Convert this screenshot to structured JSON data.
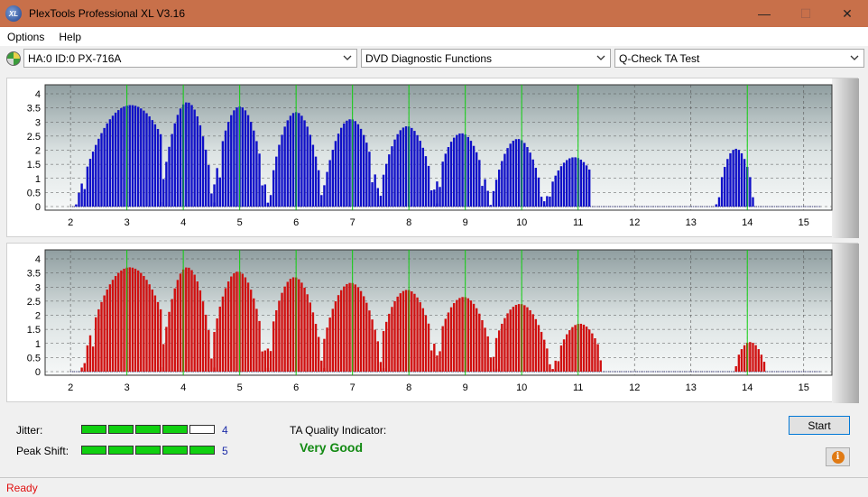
{
  "window": {
    "title": "PlexTools Professional XL V3.16",
    "icon_label": "XL",
    "minimize_glyph": "—",
    "maximize_glyph": "☐",
    "close_glyph": "✕"
  },
  "menu": {
    "items": [
      "Options",
      "Help"
    ]
  },
  "toolbar": {
    "drive": "HA:0 ID:0  PX-716A",
    "function": "DVD Diagnostic Functions",
    "test": "Q-Check TA Test"
  },
  "colors": {
    "jitter_bars": "#1010c8",
    "peak_bars": "#d01010",
    "marker_lines": "#10d010",
    "meter_on": "#10d010",
    "quality_text": "#138a13",
    "status_text": "#e01010"
  },
  "chart_data": [
    {
      "type": "bar",
      "xlim": [
        1.55,
        15.5
      ],
      "ylim": [
        0,
        4
      ],
      "x_ticks": [
        2,
        3,
        4,
        5,
        6,
        7,
        8,
        9,
        10,
        11,
        12,
        13,
        14,
        15
      ],
      "y_ticks": [
        0,
        0.5,
        1,
        1.5,
        2,
        2.5,
        3,
        3.5,
        4
      ],
      "y_tick_labels": [
        "0",
        "0.5",
        "1",
        "1.5",
        "2",
        "2.5",
        "3",
        "3.5",
        "4"
      ],
      "markers": [
        3,
        4,
        5,
        6,
        7,
        8,
        9,
        10,
        11,
        14
      ],
      "grid": true,
      "peaks": [
        {
          "center": 3.07,
          "height": 3.6,
          "from": 2.1,
          "to": 3.6,
          "shape": "rise"
        },
        {
          "center": 4.07,
          "height": 3.7,
          "from": 3.6,
          "to": 4.55
        },
        {
          "center": 5.0,
          "height": 3.55,
          "from": 4.55,
          "to": 5.5
        },
        {
          "center": 6.0,
          "height": 3.35,
          "from": 5.5,
          "to": 6.45
        },
        {
          "center": 6.97,
          "height": 3.1,
          "from": 6.45,
          "to": 7.5
        },
        {
          "center": 7.97,
          "height": 2.85,
          "from": 7.5,
          "to": 8.5
        },
        {
          "center": 8.93,
          "height": 2.6,
          "from": 8.5,
          "to": 9.45
        },
        {
          "center": 9.93,
          "height": 2.4,
          "from": 9.45,
          "to": 10.4
        },
        {
          "center": 10.93,
          "height": 1.75,
          "from": 10.4,
          "to": 11.2
        },
        {
          "center": 13.8,
          "height": 2.05,
          "from": 13.45,
          "to": 14.1
        }
      ]
    },
    {
      "type": "bar",
      "xlim": [
        1.55,
        15.5
      ],
      "ylim": [
        0,
        4
      ],
      "x_ticks": [
        2,
        3,
        4,
        5,
        6,
        7,
        8,
        9,
        10,
        11,
        12,
        13,
        14,
        15
      ],
      "y_ticks": [
        0,
        0.5,
        1,
        1.5,
        2,
        2.5,
        3,
        3.5,
        4
      ],
      "y_tick_labels": [
        "0",
        "0.5",
        "1",
        "1.5",
        "2",
        "2.5",
        "3",
        "3.5",
        "4"
      ],
      "markers": [
        3,
        4,
        5,
        6,
        7,
        8,
        9,
        10,
        11,
        14
      ],
      "grid": true,
      "peaks": [
        {
          "center": 3.05,
          "height": 3.7,
          "from": 2.2,
          "to": 3.6,
          "shape": "rise"
        },
        {
          "center": 4.07,
          "height": 3.7,
          "from": 3.6,
          "to": 4.55
        },
        {
          "center": 4.97,
          "height": 3.55,
          "from": 4.55,
          "to": 5.5
        },
        {
          "center": 5.97,
          "height": 3.35,
          "from": 5.5,
          "to": 6.5
        },
        {
          "center": 6.97,
          "height": 3.15,
          "from": 6.5,
          "to": 7.55
        },
        {
          "center": 7.97,
          "height": 2.9,
          "from": 7.55,
          "to": 8.55
        },
        {
          "center": 8.97,
          "height": 2.65,
          "from": 8.55,
          "to": 9.55
        },
        {
          "center": 9.97,
          "height": 2.4,
          "from": 9.55,
          "to": 10.55
        },
        {
          "center": 11.03,
          "height": 1.7,
          "from": 10.55,
          "to": 11.4
        },
        {
          "center": 14.05,
          "height": 1.05,
          "from": 13.8,
          "to": 14.35
        }
      ]
    }
  ],
  "results": {
    "jitter_label": "Jitter:",
    "jitter_value": "4",
    "jitter_level": 4,
    "peak_label": "Peak Shift:",
    "peak_value": "5",
    "peak_level": 5,
    "meter_segments": 5,
    "ta_label": "TA Quality Indicator:",
    "quality": "Very Good"
  },
  "buttons": {
    "start": "Start",
    "info_glyph": "i"
  },
  "status": {
    "text": "Ready"
  }
}
